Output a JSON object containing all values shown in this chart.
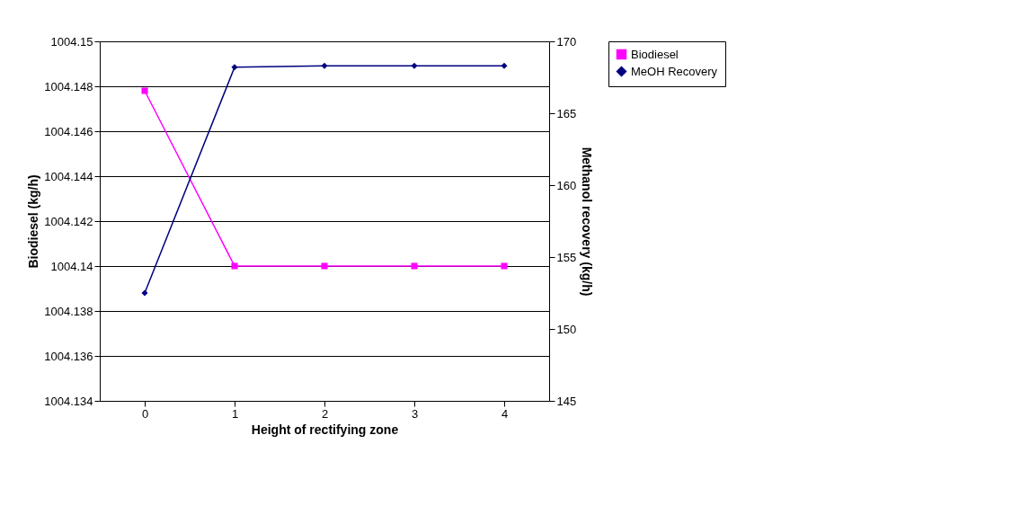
{
  "chart_data": {
    "type": "line",
    "xlabel": "Height of rectifying zone",
    "ylabel": "Biodiesel (kg/h)",
    "y2label": "Methanol recovery (kg/h)",
    "categories": [
      "0",
      "1",
      "2",
      "3",
      "4"
    ],
    "series": [
      {
        "name": "Biodiesel",
        "color": "#ff00ff",
        "marker": "square",
        "values": [
          1004.1478,
          1004.14,
          1004.14,
          1004.14,
          1004.14
        ]
      },
      {
        "name": "MeOH Recovery",
        "color": "#000080",
        "marker": "diamond",
        "axis": "y2",
        "values": [
          152.5,
          168.2,
          168.3,
          168.3,
          168.3
        ]
      }
    ],
    "ylim": [
      1004.134,
      1004.15
    ],
    "yticks": [
      1004.134,
      1004.136,
      1004.138,
      1004.14,
      1004.142,
      1004.144,
      1004.146,
      1004.148,
      1004.15
    ],
    "y2lim": [
      145,
      170
    ],
    "y2ticks": [
      145,
      150,
      155,
      160,
      165,
      170
    ],
    "grid": "y",
    "legend": "right"
  }
}
